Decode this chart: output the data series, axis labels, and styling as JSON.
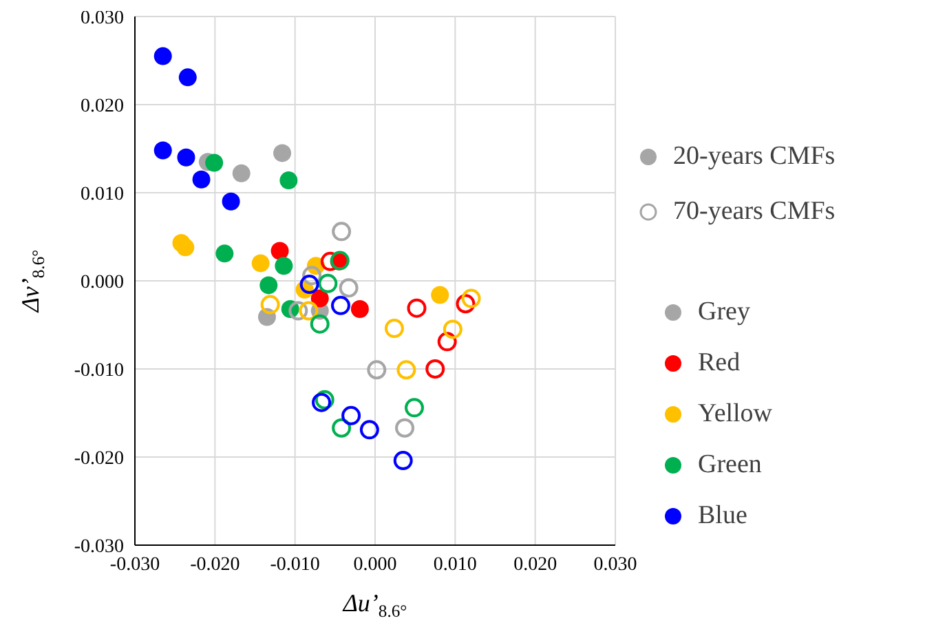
{
  "chart_data": {
    "type": "scatter",
    "xlabel": "Δu’$_{8.6°}$",
    "ylabel": "Δv’$_{8.6°}$",
    "xlim": [
      -0.03,
      0.03
    ],
    "ylim": [
      -0.03,
      0.03
    ],
    "xticks": [
      {
        "value": -0.03,
        "label": "-0.030"
      },
      {
        "value": -0.02,
        "label": "-0.020"
      },
      {
        "value": -0.01,
        "label": "-0.010"
      },
      {
        "value": 0,
        "label": "0.000"
      },
      {
        "value": 0.01,
        "label": "0.010"
      },
      {
        "value": 0.02,
        "label": "0.020"
      },
      {
        "value": 0.03,
        "label": "0.030"
      }
    ],
    "yticks": [
      {
        "value": -0.03,
        "label": "-0.030"
      },
      {
        "value": -0.02,
        "label": "-0.020"
      },
      {
        "value": -0.01,
        "label": "-0.010"
      },
      {
        "value": 0,
        "label": "0.000"
      },
      {
        "value": 0.01,
        "label": "0.010"
      },
      {
        "value": 0.02,
        "label": "0.020"
      },
      {
        "value": 0.03,
        "label": "0.030"
      }
    ],
    "grid": true,
    "legend": "right",
    "marker": "circle",
    "annotations": [
      "Grey",
      "Red",
      "Yellow",
      "Green",
      "Blue"
    ],
    "colors": [
      "#a6a6a6",
      "#ff0000",
      "#ffc000",
      "#00b050",
      "#0000ff"
    ],
    "series": [
      {
        "name": "20-years CMFs",
        "color": "#a6a6a6",
        "x": [
          -0.0209,
          -0.0116,
          -0.0167,
          -0.0135,
          -0.0069,
          -0.0119,
          -0.0045,
          -0.0069,
          -0.0019,
          -0.0242,
          -0.0237,
          -0.0143,
          -0.0074,
          -0.0088,
          0.0081,
          -0.0201,
          -0.0108,
          -0.0188,
          -0.0114,
          -0.0133,
          -0.0106,
          -0.0265,
          -0.0234,
          -0.0265,
          -0.0236,
          -0.0217,
          -0.018
        ],
        "values": [
          0.0135,
          0.0145,
          0.0122,
          -0.0041,
          -0.0034,
          0.0034,
          0.0022,
          -0.002,
          -0.0032,
          0.0043,
          0.0038,
          0.002,
          0.0017,
          -0.001,
          -0.0016,
          0.0134,
          0.0114,
          0.0031,
          0.0017,
          -0.0005,
          -0.0032,
          0.0255,
          0.0231,
          0.0148,
          0.014,
          0.0115,
          0.009
        ],
        "colors": [
          "#a6a6a6",
          "#a6a6a6",
          "#a6a6a6",
          "#a6a6a6",
          "#a6a6a6",
          "#ff0000",
          "#ff0000",
          "#ff0000",
          "#ff0000",
          "#ffc000",
          "#ffc000",
          "#ffc000",
          "#ffc000",
          "#ffc000",
          "#ffc000",
          "#00b050",
          "#00b050",
          "#00b050",
          "#00b050",
          "#00b050",
          "#00b050",
          "#0000ff",
          "#0000ff",
          "#0000ff",
          "#0000ff",
          "#0000ff",
          "#0000ff"
        ]
      },
      {
        "name": "70-years CMFs",
        "color": "#a6a6a6",
        "x": [
          -0.0042,
          -0.0033,
          -0.0079,
          -0.0096,
          0.0002,
          0.0037,
          -0.0056,
          0.0052,
          0.0113,
          0.009,
          0.0075,
          -0.0131,
          -0.0083,
          0.0024,
          0.0039,
          0.0097,
          0.012,
          -0.0044,
          -0.0059,
          -0.0069,
          -0.0063,
          -0.0042,
          0.0049,
          -0.0082,
          -0.0043,
          -0.0067,
          -0.003,
          -0.0007,
          0.0035
        ],
        "values": [
          0.0056,
          -0.0008,
          0.0006,
          -0.0034,
          -0.0101,
          -0.0167,
          0.0022,
          -0.0031,
          -0.0026,
          -0.0069,
          -0.01,
          -0.0027,
          -0.0034,
          -0.0054,
          -0.0101,
          -0.0055,
          -0.002,
          0.0023,
          -0.0003,
          -0.0049,
          -0.0135,
          -0.0167,
          -0.0144,
          -0.0004,
          -0.0028,
          -0.0138,
          -0.0153,
          -0.0169,
          -0.0204
        ],
        "colors": [
          "#a6a6a6",
          "#a6a6a6",
          "#a6a6a6",
          "#a6a6a6",
          "#a6a6a6",
          "#a6a6a6",
          "#ff0000",
          "#ff0000",
          "#ff0000",
          "#ff0000",
          "#ff0000",
          "#ffc000",
          "#ffc000",
          "#ffc000",
          "#ffc000",
          "#ffc000",
          "#ffc000",
          "#00b050",
          "#00b050",
          "#00b050",
          "#00b050",
          "#00b050",
          "#00b050",
          "#0000ff",
          "#0000ff",
          "#0000ff",
          "#0000ff",
          "#0000ff",
          "#0000ff"
        ]
      }
    ]
  }
}
